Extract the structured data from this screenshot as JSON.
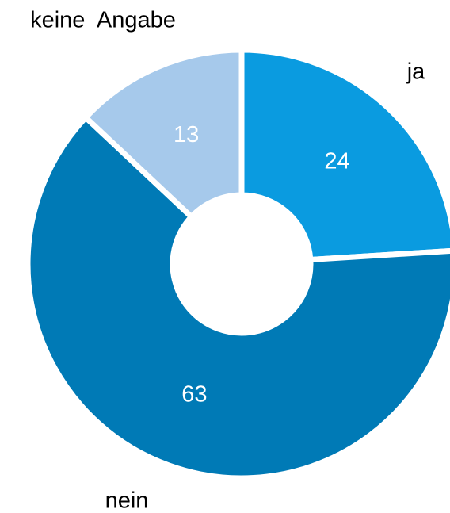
{
  "chart_data": {
    "type": "donut",
    "categories": [
      "ja",
      "nein",
      "keine  Angabe"
    ],
    "values": [
      24,
      63,
      13
    ],
    "colors": [
      "#0a9be0",
      "#007ab6",
      "#a6c9eb"
    ]
  }
}
